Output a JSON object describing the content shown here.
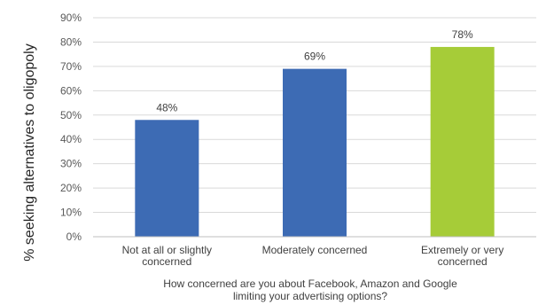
{
  "chart_data": {
    "type": "bar",
    "categories": [
      [
        "Not at all or slightly",
        "concerned"
      ],
      [
        "Moderately concerned"
      ],
      [
        "Extremely or very",
        "concerned"
      ]
    ],
    "values": [
      48,
      69,
      78
    ],
    "value_labels": [
      "48%",
      "69%",
      "78%"
    ],
    "bar_colors": [
      "#3D6BB4",
      "#3D6BB4",
      "#A6CC38"
    ],
    "ylim": [
      0,
      90
    ],
    "yticks": [
      0,
      10,
      20,
      30,
      40,
      50,
      60,
      70,
      80,
      90
    ],
    "ytick_labels": [
      "0%",
      "10%",
      "20%",
      "30%",
      "40%",
      "50%",
      "60%",
      "70%",
      "80%",
      "90%"
    ],
    "ylabel": "% seeking alternatives to oligopoly",
    "xlabel": [
      "How concerned are you about Facebook, Amazon and Google",
      "limiting your advertising options?"
    ],
    "grid": true,
    "legend": "none"
  }
}
